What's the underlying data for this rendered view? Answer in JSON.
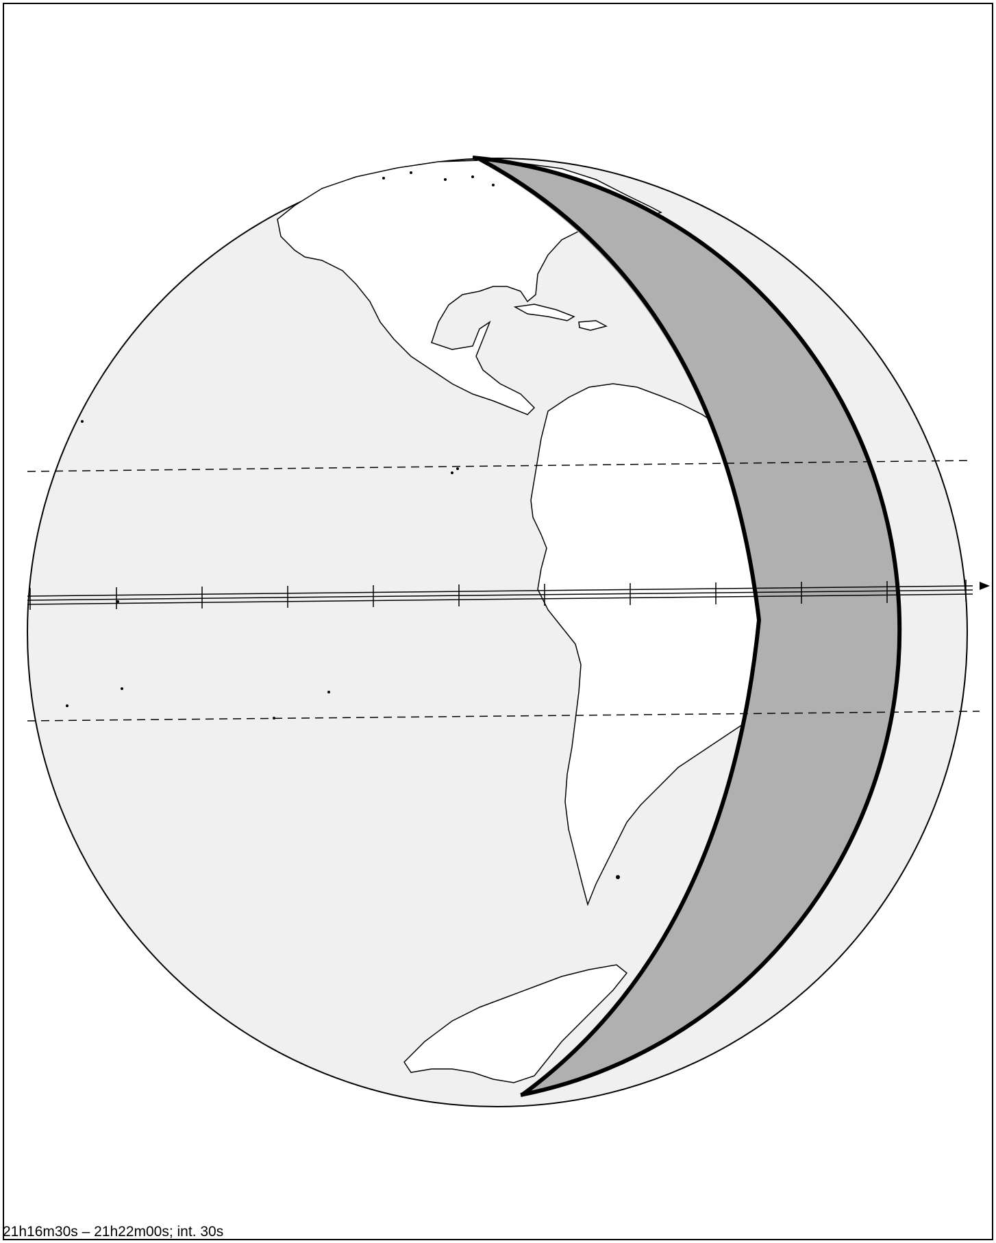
{
  "footer": {
    "time_range": "21h16m30s – 21h22m00s; int. 30s"
  },
  "colors": {
    "globe_fill": "#f0f0f0",
    "land_fill": "#ffffff",
    "shadow_fill": "#b0b0b0",
    "line": "#000000"
  },
  "map_elements": [
    "globe",
    "landmass-americas",
    "landmass-antarctica",
    "shadow-crescent",
    "shadow-limb-boundary",
    "occultation-path-central",
    "path-limit-north",
    "path-limit-south",
    "direction-arrow"
  ]
}
